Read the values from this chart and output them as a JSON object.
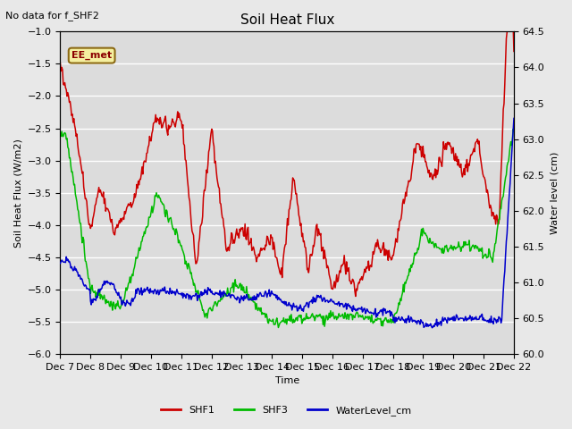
{
  "title": "Soil Heat Flux",
  "subtitle": "No data for f_SHF2",
  "ylabel_left": "Soil Heat Flux (W/m2)",
  "ylabel_right": "Water level (cm)",
  "xlabel": "Time",
  "ylim_left": [
    -6.0,
    -1.0
  ],
  "ylim_right": [
    60.0,
    64.5
  ],
  "bg_color": "#e8e8e8",
  "plot_bg_color": "#dcdcdc",
  "grid_color": "#ffffff",
  "legend_label": "EE_met",
  "legend_box_color": "#f5f0a0",
  "legend_box_edge": "#8b6914",
  "series_colors": {
    "SHF1": "#cc0000",
    "SHF3": "#00bb00",
    "WaterLevel_cm": "#0000cc"
  },
  "xtick_labels": [
    "Dec 7",
    "Dec 8",
    "Dec 9",
    "Dec 10",
    "Dec 11",
    "Dec 12",
    "Dec 13",
    "Dec 14",
    "Dec 15",
    "Dec 16",
    "Dec 17",
    "Dec 18",
    "Dec 19",
    "Dec 20",
    "Dec 21",
    "Dec 22"
  ],
  "n_points": 600
}
